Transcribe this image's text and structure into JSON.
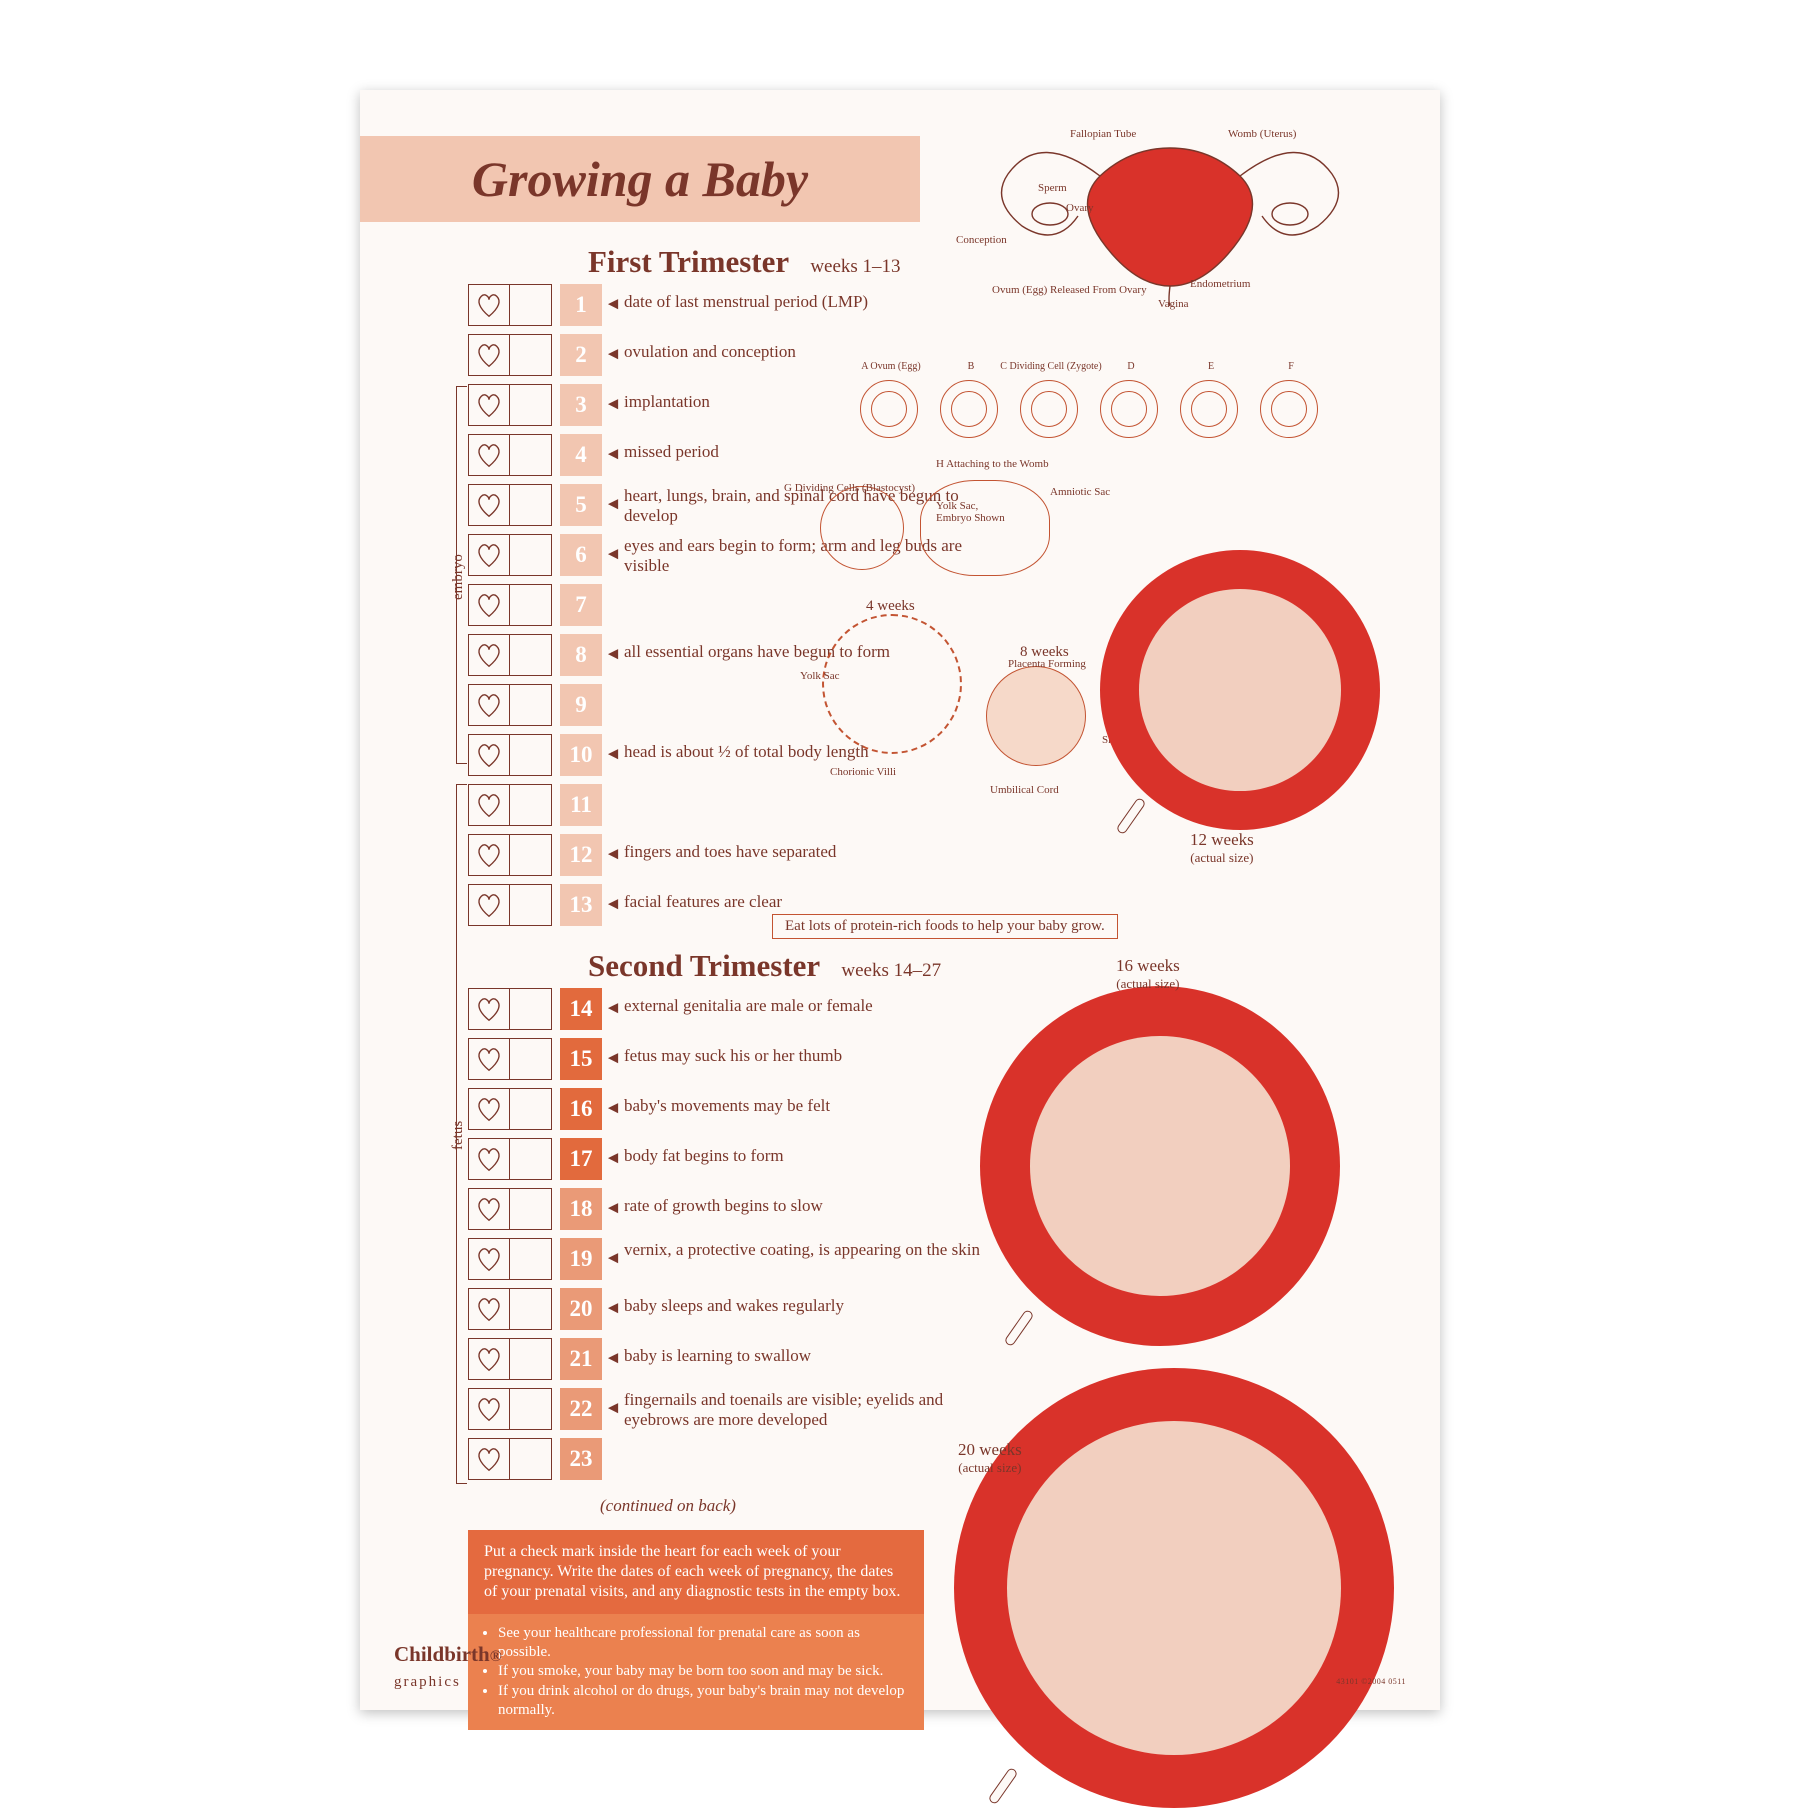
{
  "colors": {
    "bg_page": "#ffffff",
    "bg_poster": "#fdf9f6",
    "ink": "#7a362a",
    "title_bg": "#f2c6b1",
    "num_light": "#f2c6b1",
    "num_mid": "#ea9a77",
    "num_dark": "#e26a3d",
    "tip_border": "#c35432",
    "advice1_bg": "#e46a3f",
    "advice2_bg": "#eb814f",
    "womb_red": "#d9322a",
    "fetus_fill": "#f2cfbf"
  },
  "typography": {
    "title_pt": 50,
    "title_italic": true,
    "title_weight": 700,
    "heading_pt": 31,
    "subheading_pt": 19,
    "body_pt": 17,
    "caption_pt": 13,
    "label_pt": 11,
    "family": "Georgia, 'Times New Roman', serif"
  },
  "title": "Growing a Baby",
  "headings": {
    "first": "First Trimester",
    "first_sub": "weeks 1–13",
    "second": "Second Trimester",
    "second_sub": "weeks 14–27"
  },
  "brackets": {
    "embryo": "embryo",
    "fetus": "fetus"
  },
  "weeks_first": [
    {
      "n": "1",
      "desc": "date of last menstrual period (LMP)",
      "shade": "num_light"
    },
    {
      "n": "2",
      "desc": "ovulation and conception",
      "shade": "num_light"
    },
    {
      "n": "3",
      "desc": "implantation",
      "shade": "num_light"
    },
    {
      "n": "4",
      "desc": "missed period",
      "shade": "num_light"
    },
    {
      "n": "5",
      "desc": "heart, lungs, brain, and spinal cord have begun to develop",
      "shade": "num_light"
    },
    {
      "n": "6",
      "desc": "eyes and ears begin to form; arm and leg buds are visible",
      "shade": "num_light"
    },
    {
      "n": "7",
      "desc": "",
      "shade": "num_light"
    },
    {
      "n": "8",
      "desc": "all essential organs have begun to form",
      "shade": "num_light"
    },
    {
      "n": "9",
      "desc": "",
      "shade": "num_light"
    },
    {
      "n": "10",
      "desc": "head is about ½ of total body length",
      "shade": "num_light"
    },
    {
      "n": "11",
      "desc": "",
      "shade": "num_light"
    },
    {
      "n": "12",
      "desc": "fingers and toes have separated",
      "shade": "num_light"
    },
    {
      "n": "13",
      "desc": "facial features are clear",
      "shade": "num_light"
    }
  ],
  "weeks_second": [
    {
      "n": "14",
      "desc": "external genitalia are male or female",
      "shade": "num_dark"
    },
    {
      "n": "15",
      "desc": "fetus may suck his or her thumb",
      "shade": "num_dark"
    },
    {
      "n": "16",
      "desc": "baby's movements may be felt",
      "shade": "num_dark"
    },
    {
      "n": "17",
      "desc": "body fat begins to form",
      "shade": "num_dark"
    },
    {
      "n": "18",
      "desc": "rate of growth begins to slow",
      "shade": "num_mid"
    },
    {
      "n": "19",
      "desc": "vernix, a protective coating, is appearing on the skin",
      "shade": "num_mid"
    },
    {
      "n": "20",
      "desc": "baby sleeps and wakes regularly",
      "shade": "num_mid"
    },
    {
      "n": "21",
      "desc": "baby is learning to swallow",
      "shade": "num_mid"
    },
    {
      "n": "22",
      "desc": "fingernails and toenails are visible; eyelids and eyebrows are more developed",
      "shade": "num_mid"
    },
    {
      "n": "23",
      "desc": "",
      "shade": "num_mid"
    }
  ],
  "continued": "(continued on back)",
  "tip1": "Eat lots of protein-rich foods to help your baby grow.",
  "advice1": "Put a check mark inside the heart for each week of your pregnancy. Write the dates of each week of pregnancy, the dates of your prenatal visits, and any diagnostic tests in the empty box.",
  "advice2": [
    "See your healthcare professional for prenatal care as soon as possible.",
    "If you smoke, your baby may be born too soon and may be sick.",
    "If you drink alcohol or do drugs, your baby's brain may not develop normally."
  ],
  "anatomy_labels": {
    "fallopian": "Fallopian Tube",
    "womb": "Womb (Uterus)",
    "sperm": "Sperm",
    "ovary": "Ovary",
    "conception": "Conception",
    "ovum_released": "Ovum (Egg) Released From Ovary",
    "endometrium": "Endometrium",
    "vagina": "Vagina"
  },
  "cell_stages": [
    {
      "key": "A",
      "label": "Ovum (Egg)"
    },
    {
      "key": "B",
      "label": ""
    },
    {
      "key": "C",
      "label": "Dividing Cell (Zygote)"
    },
    {
      "key": "D",
      "label": ""
    },
    {
      "key": "E",
      "label": ""
    },
    {
      "key": "F",
      "label": ""
    }
  ],
  "implant_labels": {
    "g": "G  Dividing Cells (Blastocyst)",
    "h": "H  Attaching to the Womb",
    "yolk": "Yolk Sac, Embryo Shown",
    "amniotic": "Amniotic Sac"
  },
  "embryo_labels": {
    "w4": "4 weeks",
    "yolk": "Yolk Sac",
    "chorionic": "Chorionic Villi",
    "w8": "8 weeks",
    "placenta": "Placenta Forming",
    "smooth": "Smooth Chorion",
    "umbilical": "Umbilical Cord"
  },
  "captions": {
    "w12": "12 weeks",
    "w12_sub": "(actual size)",
    "w16": "16 weeks",
    "w16_sub": "(actual size)",
    "w20": "20 weeks",
    "w20_sub": "(actual size)"
  },
  "brand": "Childbirth",
  "brand_sub": "graphics",
  "code": "43101 ©2004 0511"
}
